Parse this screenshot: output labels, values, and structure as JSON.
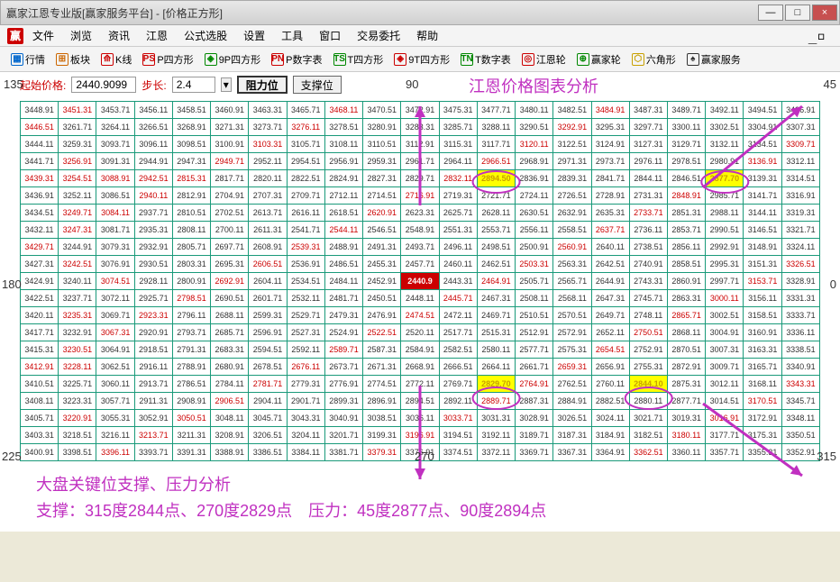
{
  "window": {
    "title": "赢家江恩专业版[赢家服务平台] - [价格正方形]",
    "min": "—",
    "max": "□",
    "close": "×"
  },
  "menu": {
    "items": [
      "文件",
      "浏览",
      "资讯",
      "江恩",
      "公式选股",
      "设置",
      "工具",
      "窗口",
      "交易委托",
      "帮助"
    ],
    "logo": "赢"
  },
  "toolbar": {
    "items": [
      {
        "icon": "▦",
        "c": "#0066cc",
        "t": "行情"
      },
      {
        "icon": "⊞",
        "c": "#cc6600",
        "t": "板块"
      },
      {
        "icon": "⟰",
        "c": "#c00",
        "t": "K线"
      },
      {
        "icon": "PS",
        "c": "#c00",
        "t": "P四方形"
      },
      {
        "icon": "◈",
        "c": "#080",
        "t": "9P四方形"
      },
      {
        "icon": "PN",
        "c": "#c00",
        "t": "P数字表"
      },
      {
        "icon": "TS",
        "c": "#080",
        "t": "T四方形"
      },
      {
        "icon": "◈",
        "c": "#c00",
        "t": "9T四方形"
      },
      {
        "icon": "TN",
        "c": "#080",
        "t": "T数字表"
      },
      {
        "icon": "◎",
        "c": "#c00",
        "t": "江恩轮"
      },
      {
        "icon": "⊕",
        "c": "#080",
        "t": "赢家轮"
      },
      {
        "icon": "⬡",
        "c": "#c8a000",
        "t": "六角形"
      },
      {
        "icon": "♠",
        "c": "#333",
        "t": "赢家服务"
      }
    ]
  },
  "controls": {
    "start_label": "起始价格:",
    "start_value": "2440.9099",
    "step_label": "步长:",
    "step_value": "2.4",
    "btn1": "阻力位",
    "btn2": "支撑位",
    "title": "江恩价格图表分析"
  },
  "axes": {
    "tl": "135",
    "tr": "45",
    "bl": "225",
    "br": "315",
    "ml": "180",
    "mr": "0",
    "tc": "90",
    "bc": "270"
  },
  "gridStart": 2440.9099,
  "gridStep": 2.4,
  "gridSize": 21,
  "highlights": [
    {
      "r": 4,
      "c": 12,
      "v": "2894.50"
    },
    {
      "r": 4,
      "c": 18,
      "v": "2877.70"
    },
    {
      "r": 10,
      "c": 10,
      "v": "2440.9"
    },
    {
      "r": 16,
      "c": 12,
      "v": "2829.70"
    },
    {
      "r": 16,
      "c": 16,
      "v": "2844.10"
    }
  ],
  "redCols": [
    1,
    3,
    6,
    8,
    12
  ],
  "bottom": {
    "l1": "大盘关键位支撑、压力分析",
    "l2": "支撑：315度2844点、270度2829点　压力：45度2877点、90度2894点"
  },
  "colors": {
    "gridBorder": "#1a9a7a",
    "highlight": "#ffff00",
    "centerBg": "#cc0000",
    "annotation": "#c030c0",
    "arrow": "#c030c0",
    "redText": "#cc0000"
  }
}
